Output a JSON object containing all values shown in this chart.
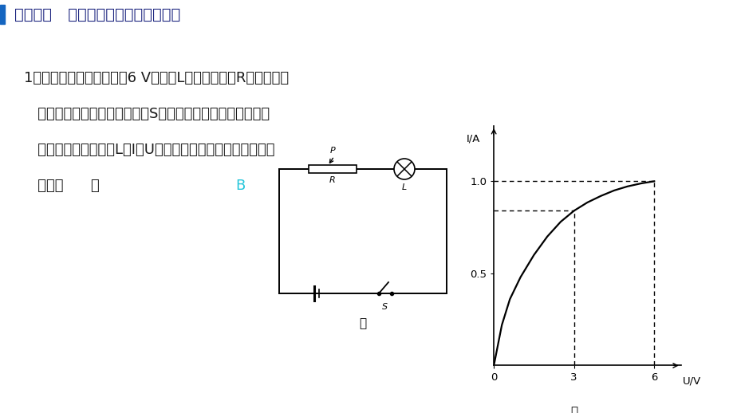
{
  "bg_color": "#ffffff",
  "title_color": "#1a237e",
  "title_text": "专题训练   有关极值、取值范围的计算",
  "title_fontsize": 14,
  "left_bar_color": "#1565c0",
  "q_lines": [
    "1．如图所示，额定电压为6 V的灯泡L与滑动变阻器R串联接入电",
    "   路，电源电压一定，闭合开关S，滑动变阻器的滑片从最右端",
    "   滑到最左端时，灯泡L的I－U图象如图乙所示，以下说法正确",
    "   的是（      ）"
  ],
  "q_fontsize": 13,
  "answer_text": "B",
  "answer_color": "#26c6da",
  "circuit_label": "甲",
  "graph_label": "乙",
  "graph_ylabel": "I/A",
  "graph_xlabel": "U/V",
  "curve_x": [
    0,
    0.3,
    0.6,
    1.0,
    1.5,
    2.0,
    2.5,
    3.0,
    3.5,
    4.0,
    4.5,
    5.0,
    5.5,
    6.0
  ],
  "curve_y": [
    0,
    0.22,
    0.36,
    0.48,
    0.6,
    0.7,
    0.78,
    0.84,
    0.885,
    0.92,
    0.95,
    0.972,
    0.988,
    1.0
  ],
  "x_ticks": [
    0,
    3,
    6
  ],
  "y_ticks": [
    0.5,
    1.0
  ],
  "xlim": [
    0,
    7.0
  ],
  "ylim": [
    0,
    1.3
  ]
}
